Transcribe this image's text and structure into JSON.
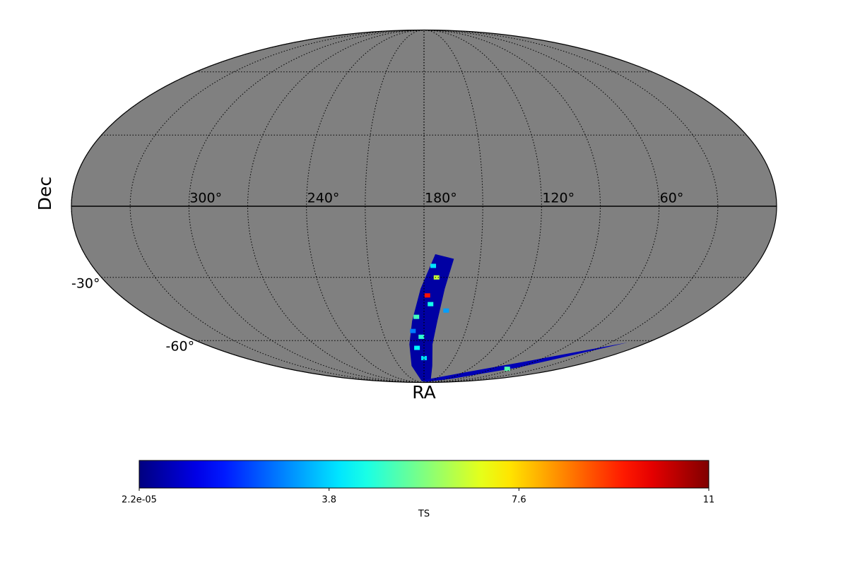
{
  "chart_data": {
    "type": "skymap",
    "projection": "mollweide",
    "xlabel": "RA",
    "ylabel": "Dec",
    "background": "#808080",
    "xticks": [
      {
        "value": 300,
        "label": "300°"
      },
      {
        "value": 240,
        "label": "240°"
      },
      {
        "value": 180,
        "label": "180°"
      },
      {
        "value": 120,
        "label": "120°"
      },
      {
        "value": 60,
        "label": "60°"
      }
    ],
    "yticks": [
      {
        "value": -30,
        "label": "-30°"
      },
      {
        "value": -60,
        "label": "-60°"
      }
    ],
    "grid_ra": [
      0,
      30,
      60,
      90,
      120,
      150,
      180,
      210,
      240,
      270,
      300,
      330
    ],
    "grid_dec": [
      -60,
      -30,
      0,
      30,
      60
    ],
    "colormap": "jet",
    "colorbar": {
      "label": "TS",
      "lim": [
        2.2e-05,
        11.4
      ],
      "ticks": [
        {
          "value": 2.2e-05,
          "label": "2.2e-05"
        },
        3.8,
        7.6,
        {
          "value": 11.4,
          "label": "11"
        }
      ]
    },
    "footprints": [
      {
        "ra": [
          174,
          182,
          188,
          192,
          195,
          190,
          150,
          170,
          173,
          171,
          168,
          164
        ],
        "dec": [
          -20,
          -35,
          -50,
          -62,
          -75,
          -88,
          -88,
          -75,
          -62,
          -50,
          -35,
          -22
        ],
        "value": 0.4
      },
      {
        "ra": [
          175,
          120,
          70,
          30,
          16,
          25,
          60,
          110,
          170
        ],
        "dec": [
          -86,
          -80,
          -72,
          -64,
          -61,
          -64,
          -76,
          -85,
          -89
        ],
        "value": 0.6
      }
    ],
    "hotspots": {
      "ra": [
        173,
        178,
        176,
        185,
        182,
        186,
        180,
        70,
        175,
        166,
        188
      ],
      "dec": [
        -30,
        -38,
        -42,
        -48,
        -58,
        -64,
        -70,
        -77,
        -25,
        -45,
        -55
      ],
      "values": [
        6.5,
        9.8,
        4.5,
        5.0,
        4.8,
        4.2,
        3.9,
        5.2,
        4.0,
        3.2,
        2.8
      ]
    }
  }
}
